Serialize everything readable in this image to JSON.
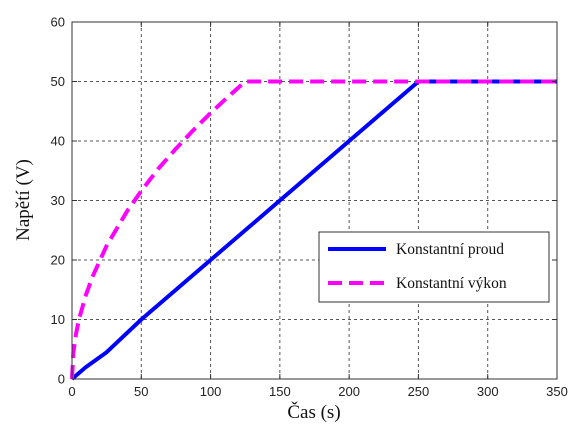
{
  "chart_data": {
    "type": "line",
    "title": "",
    "xlabel": "Čas (s)",
    "ylabel": "Napětí (V)",
    "xlim": [
      0,
      350
    ],
    "ylim": [
      0,
      60
    ],
    "xticks": [
      0,
      50,
      100,
      150,
      200,
      250,
      300,
      350
    ],
    "yticks": [
      0,
      10,
      20,
      30,
      40,
      50,
      60
    ],
    "grid": true,
    "legend_position": "center-right",
    "series": [
      {
        "name": "Konstantní proud",
        "color": "#0000ff",
        "style": "solid",
        "x": [
          0,
          10,
          25,
          50,
          75,
          100,
          125,
          150,
          175,
          200,
          225,
          250,
          275,
          300,
          325,
          350
        ],
        "y": [
          0,
          2,
          4.5,
          10,
          15,
          20,
          25,
          30,
          35,
          40,
          45,
          50,
          50,
          50,
          50,
          50
        ]
      },
      {
        "name": "Konstantní výkon",
        "color": "#ff00ff",
        "style": "dashed",
        "x": [
          0,
          1,
          3,
          5,
          10,
          15,
          25,
          40,
          50,
          62.5,
          75,
          87.5,
          100,
          112.5,
          125,
          150,
          200,
          250,
          300,
          350
        ],
        "y": [
          0,
          4.5,
          7.7,
          10,
          14.1,
          17.3,
          22.4,
          28.3,
          31.6,
          35.4,
          38.7,
          41.8,
          44.7,
          47.4,
          50,
          50,
          50,
          50,
          50,
          50
        ]
      }
    ]
  }
}
